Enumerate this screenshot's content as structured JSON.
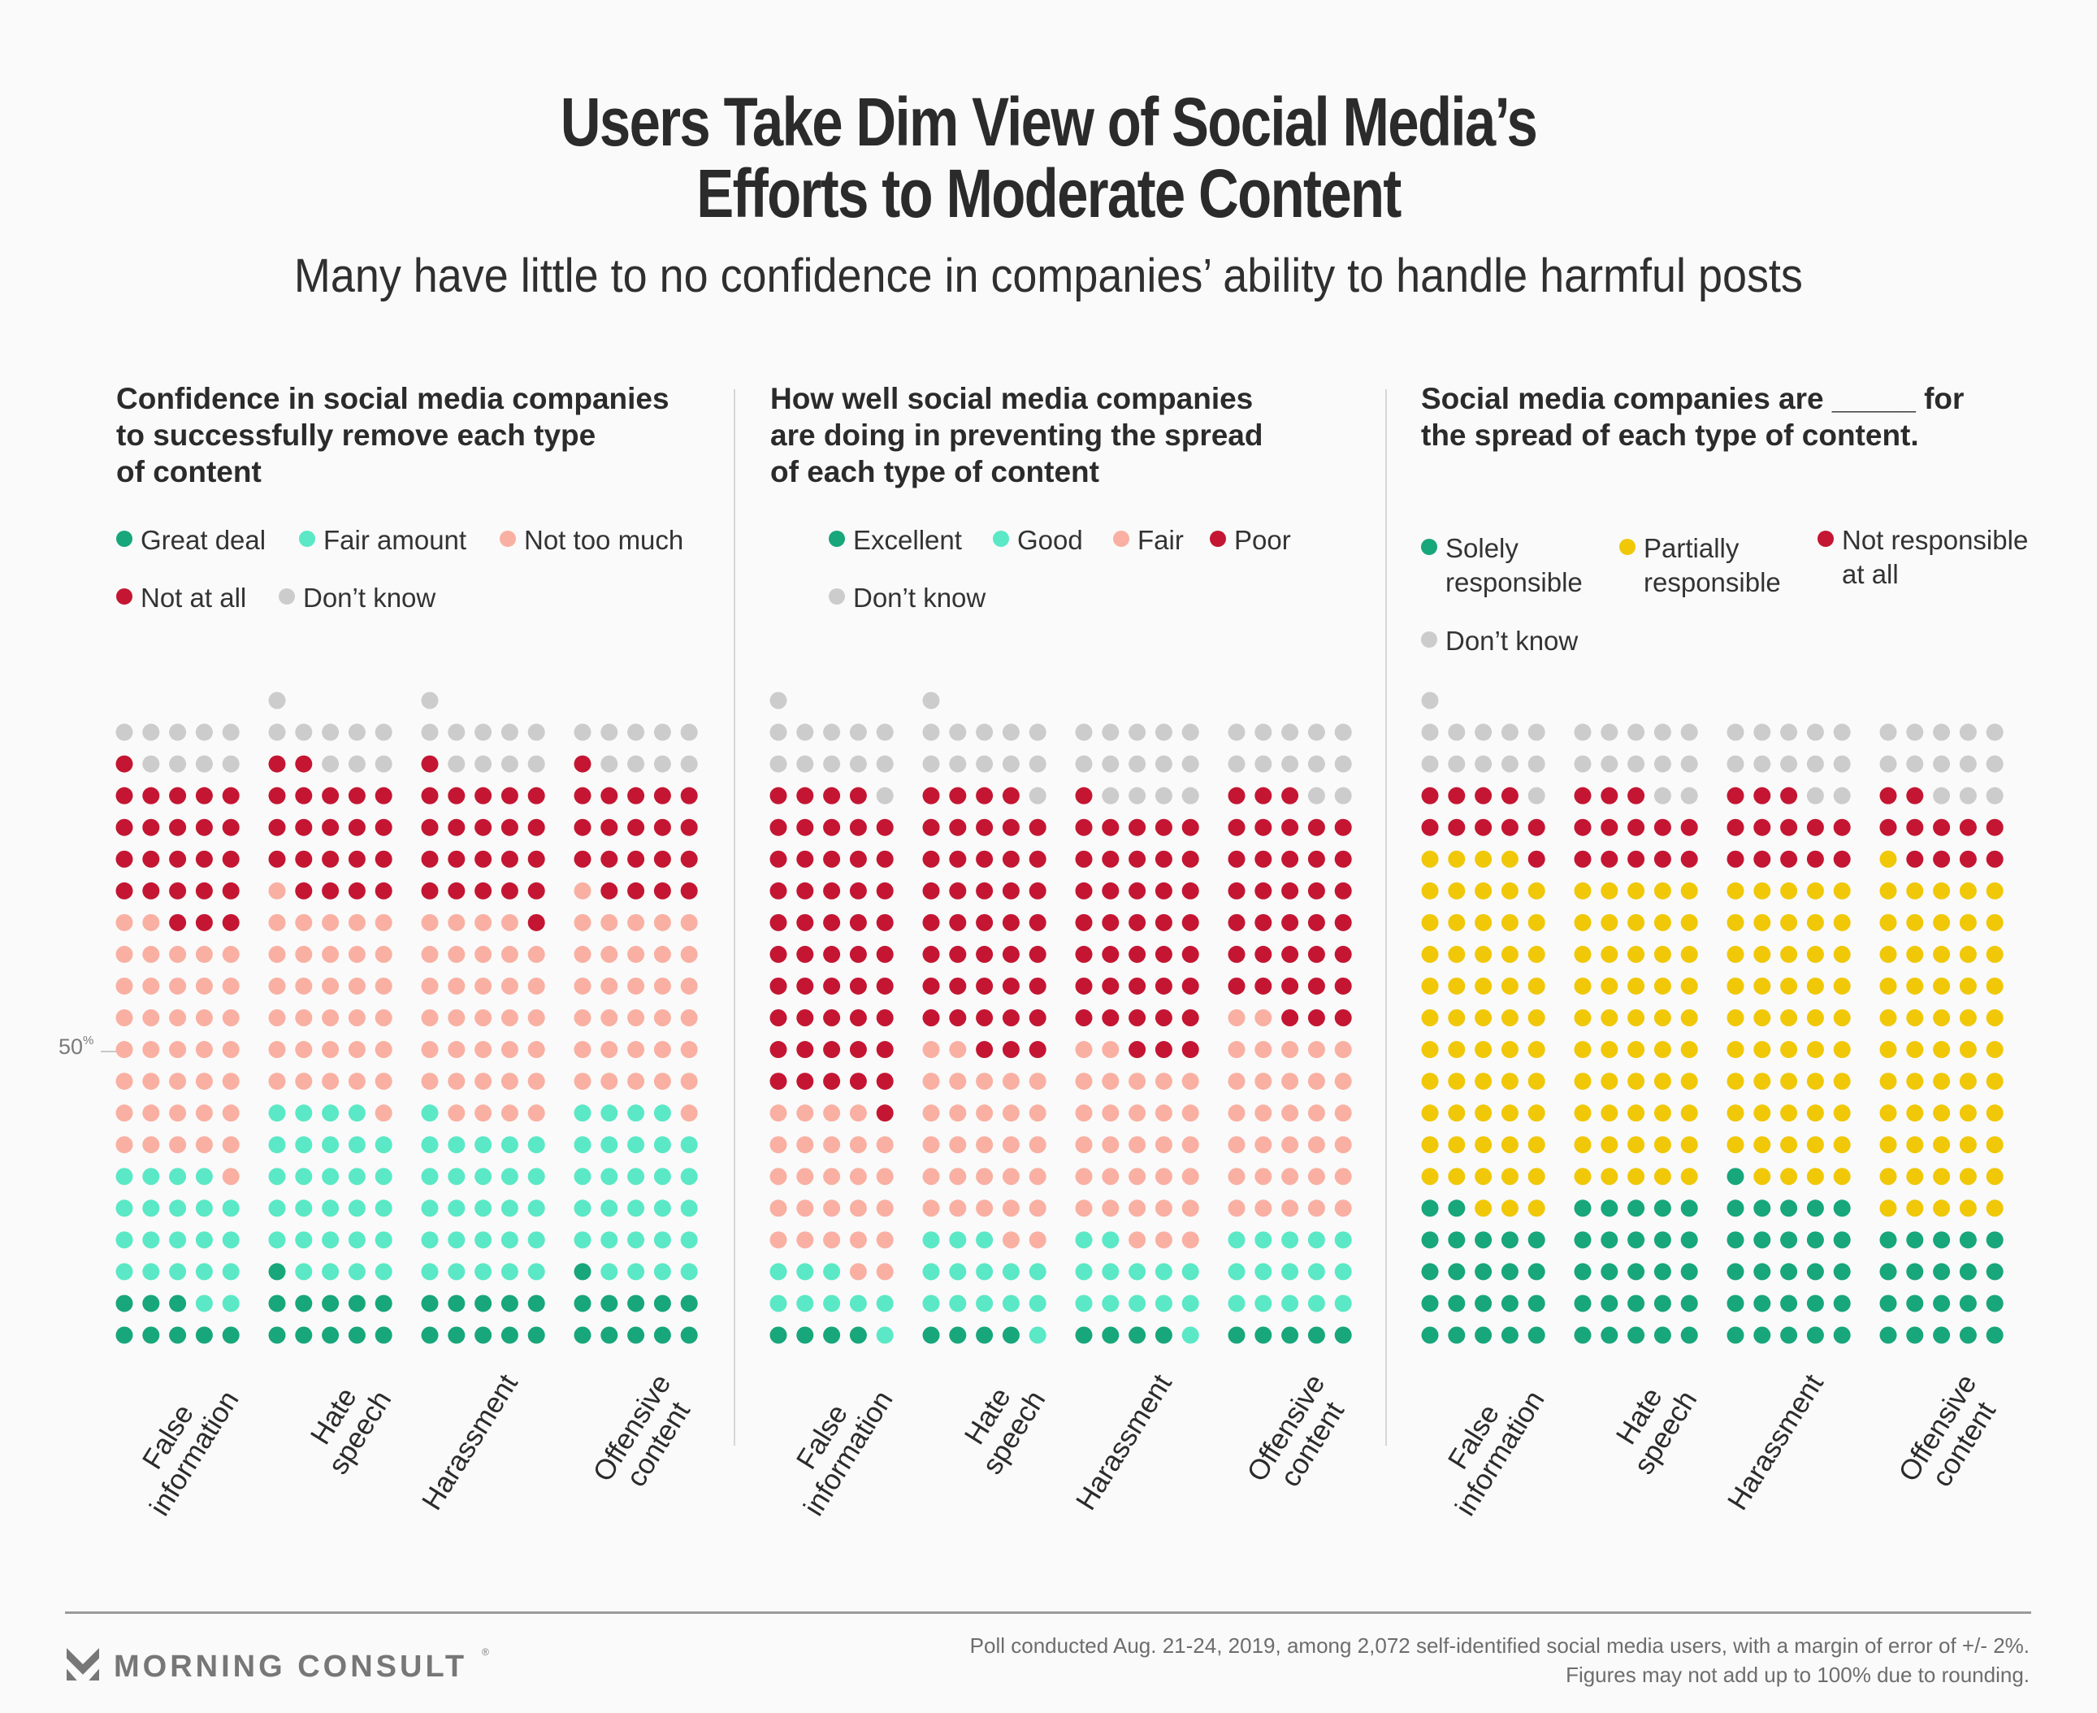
{
  "header": {
    "title_lines": [
      "Users Take Dim View of Social Media’s",
      "Efforts to Moderate Content"
    ],
    "subtitle": "Many have little to no confidence in companies’ ability to handle harmful posts"
  },
  "colors": {
    "dark_green": "#18a67b",
    "light_teal": "#5be8c6",
    "pink": "#f9b0a2",
    "red": "#c41632",
    "gray": "#cccccc",
    "yellow": "#f0c808",
    "background": "#fafafa"
  },
  "y_reference_label": {
    "value": "50",
    "unit": "%"
  },
  "chart_data": [
    {
      "type": "waffle",
      "title_lines": [
        "Confidence in social media companies",
        "to successfully remove each type",
        "of content"
      ],
      "unit": "percent (1 dot = 1%)",
      "categories": [
        "False information",
        "Hate speech",
        "Harassment",
        "Offensive content"
      ],
      "category_label_lines": [
        [
          "False",
          "information"
        ],
        [
          "Hate",
          "speech"
        ],
        [
          "Harassment"
        ],
        [
          "Offensive",
          "content"
        ]
      ],
      "legend": [
        {
          "name": "Great deal",
          "color": "#18a67b"
        },
        {
          "name": "Fair amount",
          "color": "#5be8c6"
        },
        {
          "name": "Not too much",
          "color": "#f9b0a2"
        },
        {
          "name": "Not at all",
          "color": "#c41632"
        },
        {
          "name": "Don’t know",
          "color": "#cccccc"
        }
      ],
      "series": [
        {
          "name": "Great deal",
          "values": [
            8,
            11,
            10,
            11
          ]
        },
        {
          "name": "Fair amount",
          "values": [
            21,
            28,
            26,
            28
          ]
        },
        {
          "name": "Not too much",
          "values": [
            38,
            32,
            33,
            32
          ]
        },
        {
          "name": "Not at all",
          "values": [
            24,
            21,
            22,
            20
          ]
        },
        {
          "name": "Don’t know",
          "values": [
            9,
            9,
            10,
            9
          ]
        }
      ],
      "reference_line": "50%"
    },
    {
      "type": "waffle",
      "title_lines": [
        "How well social media companies",
        "are doing in preventing the spread",
        "of each type of content"
      ],
      "unit": "percent (1 dot = 1%)",
      "categories": [
        "False information",
        "Hate speech",
        "Harassment",
        "Offensive content"
      ],
      "category_label_lines": [
        [
          "False",
          "information"
        ],
        [
          "Hate",
          "speech"
        ],
        [
          "Harassment"
        ],
        [
          "Offensive",
          "content"
        ]
      ],
      "legend": [
        {
          "name": "Excellent",
          "color": "#18a67b"
        },
        {
          "name": "Good",
          "color": "#5be8c6"
        },
        {
          "name": "Fair",
          "color": "#f9b0a2"
        },
        {
          "name": "Poor",
          "color": "#c41632"
        },
        {
          "name": "Don’t know",
          "color": "#cccccc"
        }
      ],
      "series": [
        {
          "name": "Excellent",
          "values": [
            4,
            4,
            4,
            5
          ]
        },
        {
          "name": "Good",
          "values": [
            9,
            14,
            13,
            15
          ]
        },
        {
          "name": "Fair",
          "values": [
            26,
            29,
            30,
            32
          ]
        },
        {
          "name": "Poor",
          "values": [
            50,
            42,
            39,
            36
          ]
        },
        {
          "name": "Don’t know",
          "values": [
            12,
            12,
            14,
            12
          ]
        }
      ]
    },
    {
      "type": "waffle",
      "title_lines": [
        "Social media companies are _____ for",
        "the spread of each type of content."
      ],
      "unit": "percent (1 dot = 1%)",
      "categories": [
        "False information",
        "Hate speech",
        "Harassment",
        "Offensive content"
      ],
      "category_label_lines": [
        [
          "False",
          "information"
        ],
        [
          "Hate",
          "speech"
        ],
        [
          "Harassment"
        ],
        [
          "Offensive",
          "content"
        ]
      ],
      "legend": [
        {
          "name": "Solely responsible",
          "lines": [
            "Solely",
            "responsible"
          ],
          "color": "#18a67b"
        },
        {
          "name": "Partially responsible",
          "lines": [
            "Partially",
            "responsible"
          ],
          "color": "#f0c808"
        },
        {
          "name": "Not responsible at all",
          "lines": [
            "Not responsible",
            "at all"
          ],
          "color": "#c41632"
        },
        {
          "name": "Don’t know",
          "lines": [
            "Don’t know"
          ],
          "color": "#cccccc"
        }
      ],
      "series": [
        {
          "name": "Solely responsible",
          "values": [
            22,
            25,
            26,
            20
          ]
        },
        {
          "name": "Partially responsible",
          "values": [
            57,
            50,
            49,
            56
          ]
        },
        {
          "name": "Not responsible at all",
          "values": [
            10,
            13,
            13,
            11
          ]
        },
        {
          "name": "Don’t know",
          "values": [
            12,
            12,
            12,
            13
          ]
        }
      ]
    }
  ],
  "footer": {
    "brand": "MORNING CONSULT",
    "registered_mark": "®",
    "note_lines": [
      "Poll conducted Aug. 21-24, 2019, among 2,072 self-identified social media users, with a margin of error of +/- 2%.",
      "Figures may not add up to 100% due to rounding."
    ]
  }
}
